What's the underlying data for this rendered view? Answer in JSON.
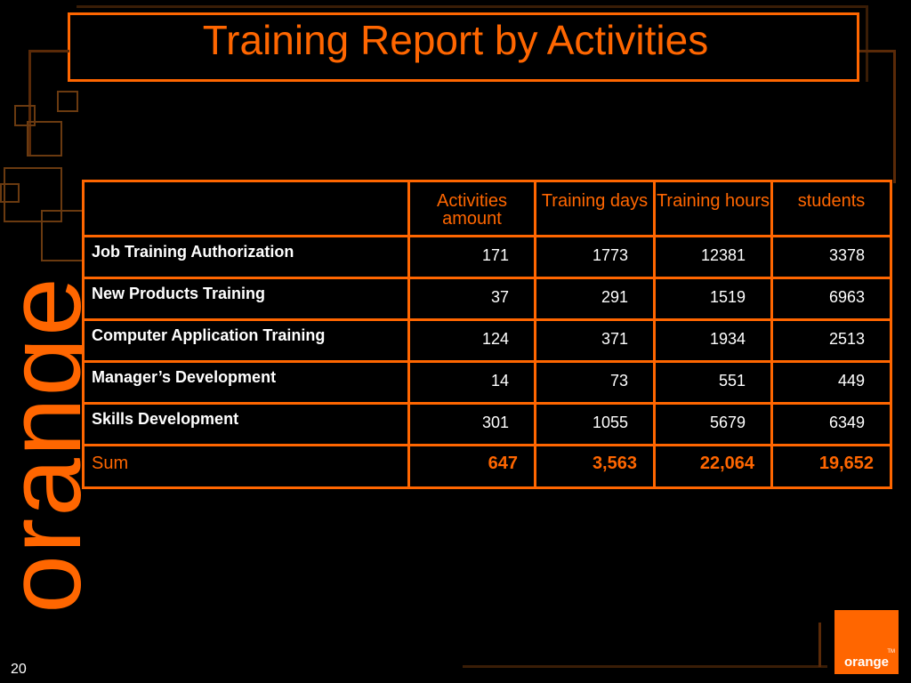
{
  "slide": {
    "title": "Training Report by Activities",
    "wordmark": "orange",
    "page_number": "20",
    "logo_text": "orange",
    "logo_tm": "TM"
  },
  "colors": {
    "accent": "#ff6600",
    "background": "#000000",
    "text": "#ffffff"
  },
  "table": {
    "headers": [
      "",
      "Activities amount",
      "Training days",
      "Training hours",
      "students"
    ],
    "rows": [
      {
        "label": "Job Training Authorization",
        "values": [
          "171",
          "1773",
          "12381",
          "3378"
        ]
      },
      {
        "label": "New Products Training",
        "values": [
          "37",
          "291",
          "1519",
          "6963"
        ]
      },
      {
        "label": "Computer Application Training",
        "values": [
          "124",
          "371",
          "1934",
          "2513"
        ]
      },
      {
        "label": "Manager’s Development",
        "values": [
          "14",
          "73",
          "551",
          "449"
        ]
      },
      {
        "label": "Skills Development",
        "values": [
          "301",
          "1055",
          "5679",
          "6349"
        ]
      }
    ],
    "sum": {
      "label": "Sum",
      "values": [
        "647",
        "3,563",
        "22,064",
        "19,652"
      ]
    }
  }
}
